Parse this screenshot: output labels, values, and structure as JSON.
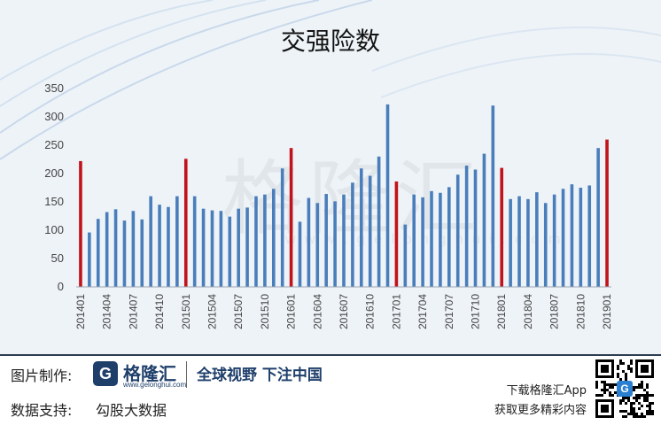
{
  "chart_data": {
    "type": "bar",
    "title": "交强险数",
    "ylim": [
      0,
      350
    ],
    "yticks": [
      0,
      50,
      100,
      150,
      200,
      250,
      300,
      350
    ],
    "grid": false,
    "colors": {
      "normal": "#4a7ebb",
      "january": "#c0131b"
    },
    "categories": [
      "201401",
      "201402",
      "201403",
      "201404",
      "201405",
      "201406",
      "201407",
      "201408",
      "201409",
      "201410",
      "201411",
      "201412",
      "201501",
      "201502",
      "201503",
      "201504",
      "201505",
      "201506",
      "201507",
      "201508",
      "201509",
      "201510",
      "201511",
      "201512",
      "201601",
      "201602",
      "201603",
      "201604",
      "201605",
      "201606",
      "201607",
      "201608",
      "201609",
      "201610",
      "201611",
      "201612",
      "201701",
      "201702",
      "201703",
      "201704",
      "201705",
      "201706",
      "201707",
      "201708",
      "201709",
      "201710",
      "201711",
      "201712",
      "201801",
      "201802",
      "201803",
      "201804",
      "201805",
      "201806",
      "201807",
      "201808",
      "201809",
      "201810",
      "201811",
      "201812",
      "201901"
    ],
    "x_tick_labels": [
      "201401",
      "201404",
      "201407",
      "201410",
      "201501",
      "201504",
      "201507",
      "201510",
      "201601",
      "201604",
      "201607",
      "201610",
      "201701",
      "201704",
      "201707",
      "201710",
      "201801",
      "201804",
      "201807",
      "201810",
      "201901"
    ],
    "values": [
      222,
      96,
      120,
      132,
      137,
      117,
      134,
      119,
      160,
      145,
      141,
      160,
      226,
      160,
      138,
      135,
      134,
      124,
      138,
      140,
      160,
      163,
      173,
      209,
      245,
      115,
      157,
      148,
      164,
      151,
      163,
      184,
      209,
      196,
      230,
      322,
      186,
      110,
      163,
      158,
      169,
      166,
      176,
      198,
      214,
      207,
      235,
      320,
      210,
      155,
      160,
      155,
      167,
      148,
      163,
      173,
      181,
      175,
      179,
      245,
      260
    ]
  },
  "watermark": {
    "text": "格隆汇",
    "url": "w w w . g e l o n g h u i . c o m"
  },
  "footer": {
    "image_credit_label": "图片制作:",
    "logo_letter": "G",
    "logo_name": "格隆汇",
    "logo_url": "www.gelonghui.com",
    "slogan": "全球视野 下注中国",
    "data_support_label": "数据支持:",
    "data_support_value": "勾股大数据",
    "app_line1": "下载格隆汇App",
    "app_line2": "获取更多精彩内容",
    "qr_center_letter": "G"
  }
}
